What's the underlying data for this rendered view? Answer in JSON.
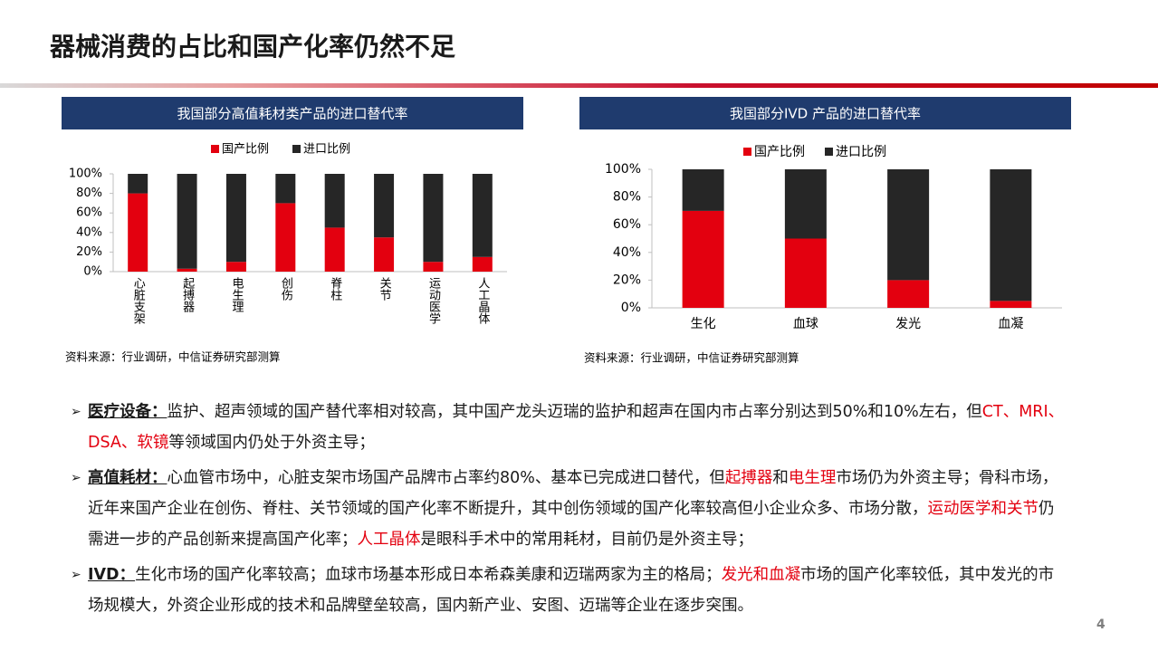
{
  "title": "器械消费的占比和国产化率仍然不足",
  "chart_data": [
    {
      "type": "stacked_bar",
      "title": "我国部分高值耗材类产品的进口替代率",
      "categories": [
        "心脏支架",
        "起搏器",
        "电生理",
        "创伤",
        "脊柱",
        "关节",
        "运动医学",
        "人工晶体"
      ],
      "series": [
        {
          "name": "国产比例",
          "color": "#e3000f",
          "values": [
            80,
            3,
            10,
            70,
            45,
            35,
            10,
            15
          ]
        },
        {
          "name": "进口比例",
          "color": "#262626",
          "values": [
            20,
            97,
            90,
            30,
            55,
            65,
            90,
            85
          ]
        }
      ],
      "ylim": [
        0,
        100
      ],
      "yticks": [
        {
          "value": 0,
          "label": "0%"
        },
        {
          "value": 20,
          "label": "20%"
        },
        {
          "value": 40,
          "label": "40%"
        },
        {
          "value": 60,
          "label": "60%"
        },
        {
          "value": 80,
          "label": "80%"
        },
        {
          "value": 100,
          "label": "100%"
        }
      ],
      "source": "资料来源：行业调研，中信证券研究部测算"
    },
    {
      "type": "stacked_bar",
      "title": "我国部分IVD 产品的进口替代率",
      "categories": [
        "生化",
        "血球",
        "发光",
        "血凝"
      ],
      "series": [
        {
          "name": "国产比例",
          "color": "#e3000f",
          "values": [
            70,
            50,
            20,
            5
          ]
        },
        {
          "name": "进口比例",
          "color": "#262626",
          "values": [
            30,
            50,
            80,
            95
          ]
        }
      ],
      "ylim": [
        0,
        100
      ],
      "yticks": [
        {
          "value": 0,
          "label": "0%"
        },
        {
          "value": 20,
          "label": "20%"
        },
        {
          "value": 40,
          "label": "40%"
        },
        {
          "value": 60,
          "label": "60%"
        },
        {
          "value": 80,
          "label": "80%"
        },
        {
          "value": 100,
          "label": "100%"
        }
      ],
      "source": "资料来源：行业调研，中信证券研究部测算"
    }
  ],
  "bullets": [
    {
      "segments": [
        {
          "text": "医疗设备：",
          "style": "label"
        },
        {
          "text": "监护、超声领域的国产替代率相对较高，其中国产龙头迈瑞的监护和超声在国内市占率分别达到50%和10%左右，但",
          "style": "normal"
        },
        {
          "text": "CT、MRI、DSA、软镜",
          "style": "red"
        },
        {
          "text": "等领域国内仍处于外资主导；",
          "style": "normal"
        }
      ]
    },
    {
      "segments": [
        {
          "text": "高值耗材：",
          "style": "label"
        },
        {
          "text": "心血管市场中，心脏支架市场国产品牌市占率约80%、基本已完成进口替代，但",
          "style": "normal"
        },
        {
          "text": "起搏器",
          "style": "red"
        },
        {
          "text": "和",
          "style": "normal"
        },
        {
          "text": "电生理",
          "style": "red"
        },
        {
          "text": "市场仍为外资主导；骨科市场，近年来国产企业在创伤、脊柱、关节领域的国产化率不断提升，其中创伤领域的国产化率较高但小企业众多、市场分散，",
          "style": "normal"
        },
        {
          "text": "运动医学和关节",
          "style": "red"
        },
        {
          "text": "仍需进一步的产品创新来提高国产化率；",
          "style": "normal"
        },
        {
          "text": "人工晶体",
          "style": "red"
        },
        {
          "text": "是眼科手术中的常用耗材，目前仍是外资主导；",
          "style": "normal"
        }
      ]
    },
    {
      "segments": [
        {
          "text": "IVD：",
          "style": "label"
        },
        {
          "text": "生化市场的国产化率较高；血球市场基本形成日本希森美康和迈瑞两家为主的格局；",
          "style": "normal"
        },
        {
          "text": "发光和血凝",
          "style": "red"
        },
        {
          "text": "市场的国产化率较低，其中发光的市场规模大，外资企业形成的技术和品牌壁垒较高，国内新产业、安图、迈瑞等企业在逐步突围。",
          "style": "normal"
        }
      ]
    }
  ],
  "page_number": "4"
}
